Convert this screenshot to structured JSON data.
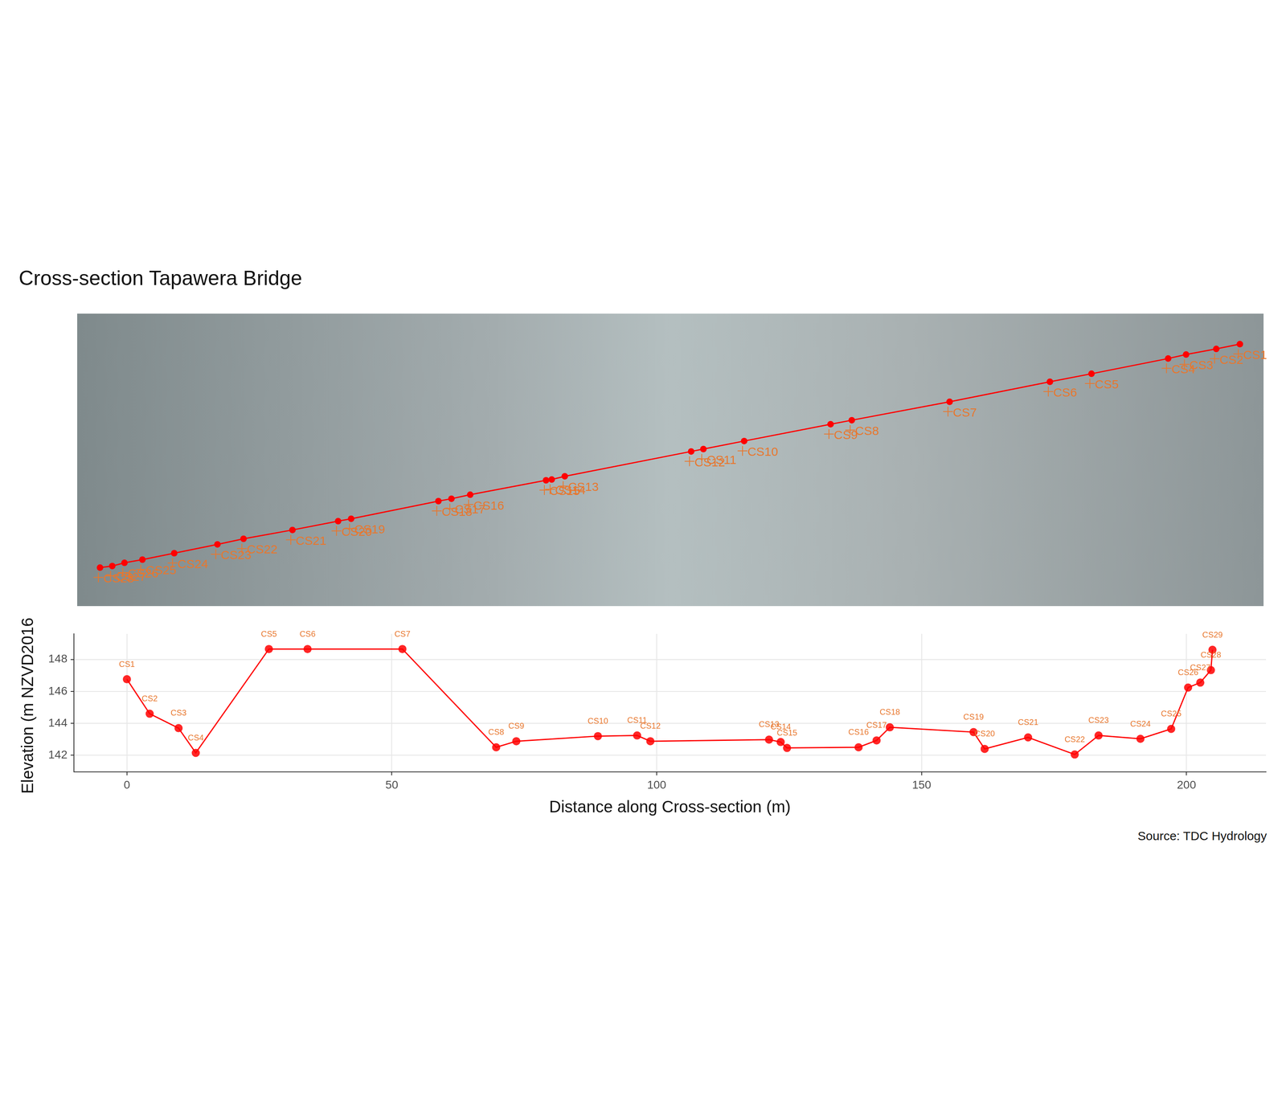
{
  "chart_data": [
    {
      "type": "scatter",
      "title": "Cross-section Tapawera Bridge",
      "x": [
        213.9,
        209.55,
        204.0,
        200.7,
        186.6,
        178.95,
        160.5,
        142.5,
        138.6,
        122.7,
        115.2,
        112.95,
        89.7,
        87.3,
        86.25,
        72.3,
        68.85,
        66.45,
        50.4,
        48.0,
        39.6,
        30.6,
        25.8,
        17.85,
        12.0,
        8.7,
        6.45,
        4.2
      ],
      "series": [
        {
          "color": "#ff0000",
          "marker": "circle",
          "line_style": "solid",
          "values": [
            49.05,
            48.15,
            47.1,
            46.35,
            43.5,
            42.0,
            38.25,
            34.8,
            34.05,
            30.9,
            29.4,
            28.95,
            24.3,
            23.7,
            23.55,
            20.85,
            20.1,
            19.65,
            16.35,
            15.9,
            14.25,
            12.6,
            11.55,
            9.9,
            8.7,
            8.1,
            7.5,
            7.2
          ],
          "labels": [
            "CS1",
            "CS2",
            "CS3",
            "CS4",
            "CS5",
            "CS6",
            "CS7",
            "CS8",
            "CS9",
            "CS10",
            "CS11",
            "CS12",
            "CS13",
            "CS14",
            "CS15",
            "CS16",
            "CS17",
            "CS18",
            "CS19",
            "CS20",
            "CS21",
            "CS22",
            "CS23",
            "CS24",
            "CS25",
            "CS26",
            "CS27",
            "CS28"
          ]
        }
      ],
      "xlim": [
        0,
        218.25
      ],
      "ylim": [
        0,
        54.75
      ],
      "grid": false,
      "tick_labels": false
    },
    {
      "type": "line",
      "x_label": "Distance along Cross-section (m)",
      "y_label": "Elevation (m NZVD2016)",
      "caption": "Source: TDC Hydrology",
      "x": [
        0,
        4.3,
        9.75,
        13.0,
        26.8,
        34.1,
        52.0,
        69.7,
        73.5,
        88.9,
        96.3,
        98.8,
        121.2,
        123.4,
        124.6,
        138.1,
        141.5,
        144.0,
        159.8,
        161.9,
        170.1,
        178.9,
        183.4,
        191.3,
        197.1,
        200.3,
        202.6,
        204.6,
        204.9
      ],
      "series": [
        {
          "color": "#ff0000",
          "marker": "circle",
          "line_style": "solid",
          "values": [
            146.76,
            144.6,
            143.7,
            142.15,
            148.65,
            148.65,
            148.65,
            142.5,
            142.88,
            143.2,
            143.24,
            142.88,
            142.98,
            142.83,
            142.46,
            142.5,
            142.93,
            143.75,
            143.45,
            142.4,
            143.12,
            142.05,
            143.24,
            143.03,
            143.65,
            146.24,
            146.55,
            147.33,
            148.6
          ],
          "labels": [
            "CS1",
            "CS2",
            "CS3",
            "CS4",
            "CS5",
            "CS6",
            "CS7",
            "CS8",
            "CS9",
            "CS10",
            "CS11",
            "CS12",
            "CS13",
            "CS14",
            "CS15",
            "CS16",
            "CS17",
            "CS18",
            "CS19",
            "CS20",
            "CS21",
            "CS22",
            "CS23",
            "CS24",
            "CS25",
            "CS26",
            "CS27",
            "CS28",
            "CS29"
          ]
        }
      ],
      "xlim": [
        -10,
        215
      ],
      "xticks": [
        0,
        50,
        100,
        150,
        200
      ],
      "ylim": [
        140.95,
        149.6
      ],
      "yticks": [
        142,
        144,
        146,
        148
      ],
      "grid": true
    }
  ]
}
